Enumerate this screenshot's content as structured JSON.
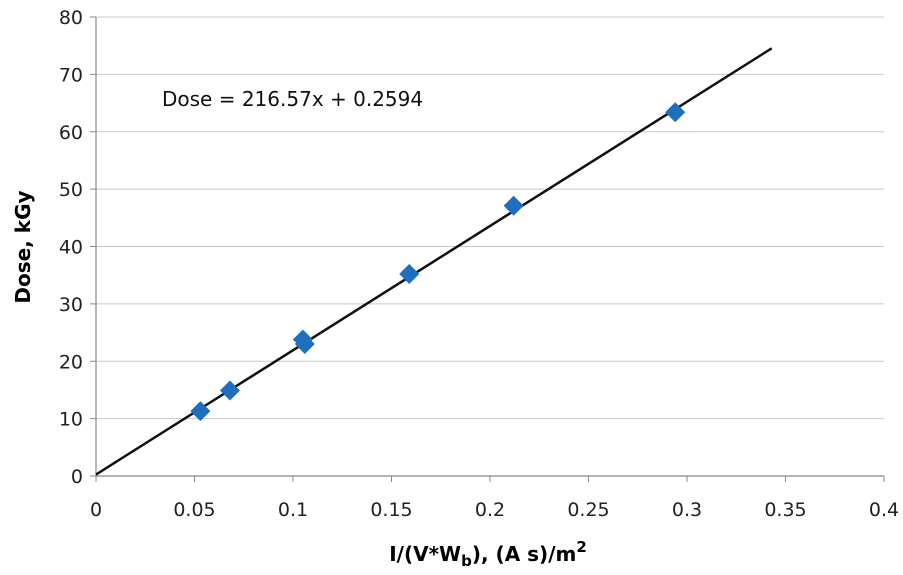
{
  "chart_data": {
    "type": "scatter",
    "title": "",
    "xlabel": "I/(V*W_b), (A s)/m^2",
    "xlabel_parts": {
      "main": "I/(V*W",
      "sub": "b",
      "rest": "), (A s)/m",
      "sup": "2"
    },
    "ylabel": "Dose, kGy",
    "xlim": [
      0,
      0.4
    ],
    "ylim": [
      0,
      80
    ],
    "x_ticks": [
      "0",
      "0.05",
      "0.1",
      "0.15",
      "0.2",
      "0.25",
      "0.3",
      "0.35",
      "0.4"
    ],
    "y_ticks": [
      "0",
      "10",
      "20",
      "30",
      "40",
      "50",
      "60",
      "70",
      "80"
    ],
    "grid": "horizontal",
    "marker": "diamond",
    "series": [
      {
        "points": [
          {
            "x": 0.053,
            "y": 11.3
          },
          {
            "x": 0.068,
            "y": 14.9
          },
          {
            "x": 0.105,
            "y": 23.8
          },
          {
            "x": 0.106,
            "y": 23.0
          },
          {
            "x": 0.159,
            "y": 35.2
          },
          {
            "x": 0.212,
            "y": 47.1
          },
          {
            "x": 0.294,
            "y": 63.4
          }
        ]
      }
    ],
    "trendline": {
      "slope": 216.57,
      "intercept": 0.2594,
      "x_range": [
        0,
        0.343
      ],
      "equation_label": "Dose = 216.57x + 0.2594"
    },
    "colors": {
      "marker": "#1f6fbf",
      "trendline": "#111111",
      "grid": "#c8c8c8",
      "axis": "#888888"
    }
  }
}
